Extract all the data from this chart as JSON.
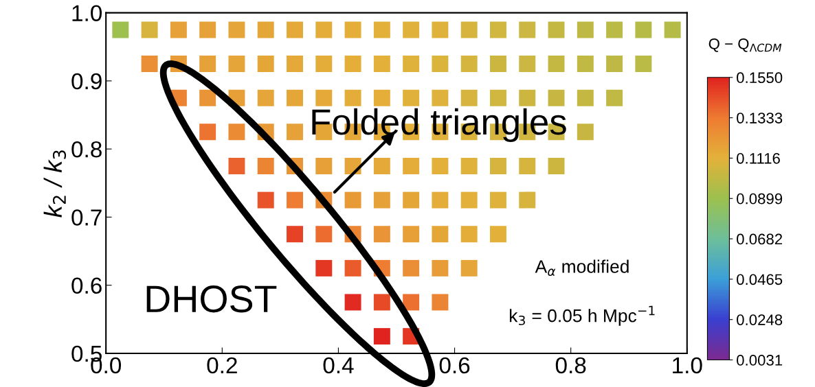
{
  "chart_data": {
    "type": "scatter",
    "marker": "square",
    "ylabel": "k$_{2}$ / k$_{3}$",
    "clabel": "Q − Q$_{ΛCDM}$",
    "annotations": [
      "Folded triangles",
      "DHOST",
      "A$_{α}$ modified",
      "k$_{3}$ = 0.05 h Mpc$^{−1}$"
    ],
    "x": [
      0.025,
      0.075,
      0.125,
      0.175,
      0.225,
      0.275,
      0.325,
      0.375,
      0.425,
      0.475,
      0.525,
      0.575,
      0.625,
      0.675,
      0.725,
      0.775,
      0.825,
      0.875,
      0.925,
      0.975,
      0.075,
      0.125,
      0.175,
      0.225,
      0.275,
      0.325,
      0.375,
      0.425,
      0.475,
      0.525,
      0.575,
      0.625,
      0.675,
      0.725,
      0.775,
      0.825,
      0.875,
      0.925,
      0.125,
      0.175,
      0.225,
      0.275,
      0.325,
      0.375,
      0.425,
      0.475,
      0.525,
      0.575,
      0.625,
      0.675,
      0.725,
      0.775,
      0.825,
      0.875,
      0.175,
      0.225,
      0.275,
      0.325,
      0.375,
      0.425,
      0.475,
      0.525,
      0.575,
      0.625,
      0.675,
      0.725,
      0.775,
      0.825,
      0.225,
      0.275,
      0.325,
      0.375,
      0.425,
      0.475,
      0.525,
      0.575,
      0.625,
      0.675,
      0.725,
      0.775,
      0.275,
      0.325,
      0.375,
      0.425,
      0.475,
      0.525,
      0.575,
      0.625,
      0.675,
      0.725,
      0.325,
      0.375,
      0.425,
      0.475,
      0.525,
      0.575,
      0.625,
      0.675,
      0.375,
      0.425,
      0.475,
      0.525,
      0.575,
      0.625,
      0.425,
      0.475,
      0.525,
      0.575,
      0.475,
      0.525
    ],
    "values": [
      0.975,
      0.975,
      0.975,
      0.975,
      0.975,
      0.975,
      0.975,
      0.975,
      0.975,
      0.975,
      0.975,
      0.975,
      0.975,
      0.975,
      0.975,
      0.975,
      0.975,
      0.975,
      0.975,
      0.975,
      0.925,
      0.925,
      0.925,
      0.925,
      0.925,
      0.925,
      0.925,
      0.925,
      0.925,
      0.925,
      0.925,
      0.925,
      0.925,
      0.925,
      0.925,
      0.925,
      0.925,
      0.925,
      0.875,
      0.875,
      0.875,
      0.875,
      0.875,
      0.875,
      0.875,
      0.875,
      0.875,
      0.875,
      0.875,
      0.875,
      0.875,
      0.875,
      0.875,
      0.875,
      0.825,
      0.825,
      0.825,
      0.825,
      0.825,
      0.825,
      0.825,
      0.825,
      0.825,
      0.825,
      0.825,
      0.825,
      0.825,
      0.825,
      0.775,
      0.775,
      0.775,
      0.775,
      0.775,
      0.775,
      0.775,
      0.775,
      0.775,
      0.775,
      0.775,
      0.775,
      0.725,
      0.725,
      0.725,
      0.725,
      0.725,
      0.725,
      0.725,
      0.725,
      0.725,
      0.725,
      0.675,
      0.675,
      0.675,
      0.675,
      0.675,
      0.675,
      0.675,
      0.675,
      0.625,
      0.625,
      0.625,
      0.625,
      0.625,
      0.625,
      0.575,
      0.575,
      0.575,
      0.575,
      0.525,
      0.525
    ],
    "cvalues": [
      0.09,
      0.108,
      0.118,
      0.118,
      0.117,
      0.116,
      0.115,
      0.114,
      0.113,
      0.112,
      0.111,
      0.11,
      0.108,
      0.106,
      0.104,
      0.102,
      0.1,
      0.099,
      0.098,
      0.097,
      0.125,
      0.12,
      0.118,
      0.117,
      0.116,
      0.115,
      0.114,
      0.113,
      0.112,
      0.11,
      0.109,
      0.107,
      0.105,
      0.104,
      0.102,
      0.101,
      0.1,
      0.099,
      0.13,
      0.123,
      0.119,
      0.117,
      0.116,
      0.115,
      0.114,
      0.113,
      0.111,
      0.11,
      0.108,
      0.106,
      0.105,
      0.103,
      0.102,
      0.101,
      0.135,
      0.126,
      0.121,
      0.118,
      0.116,
      0.115,
      0.114,
      0.112,
      0.111,
      0.109,
      0.107,
      0.106,
      0.104,
      0.103,
      0.139,
      0.129,
      0.123,
      0.119,
      0.117,
      0.115,
      0.114,
      0.112,
      0.11,
      0.108,
      0.107,
      0.105,
      0.143,
      0.133,
      0.126,
      0.121,
      0.118,
      0.116,
      0.114,
      0.112,
      0.11,
      0.108,
      0.147,
      0.137,
      0.129,
      0.123,
      0.119,
      0.116,
      0.114,
      0.112,
      0.15,
      0.141,
      0.132,
      0.125,
      0.12,
      0.117,
      0.153,
      0.145,
      0.136,
      0.129,
      0.155,
      0.15
    ],
    "xlim": [
      0,
      1
    ],
    "ylim": [
      0.5,
      1
    ],
    "xticks": [
      {
        "value": 0,
        "label": "0.0"
      },
      {
        "value": 0.2,
        "label": "0.2"
      },
      {
        "value": 0.4,
        "label": "0.4"
      },
      {
        "value": 0.6,
        "label": "0.6"
      },
      {
        "value": 0.8,
        "label": "0.8"
      },
      {
        "value": 1,
        "label": "1.0"
      }
    ],
    "yticks": [
      {
        "value": 0.5,
        "label": "0.5"
      },
      {
        "value": 0.6,
        "label": "0.6"
      },
      {
        "value": 0.7,
        "label": "0.7"
      },
      {
        "value": 0.8,
        "label": "0.8"
      },
      {
        "value": 0.9,
        "label": "0.9"
      },
      {
        "value": 1,
        "label": "1.0"
      }
    ],
    "clim": [
      0.0031,
      0.155
    ],
    "cticks": [
      {
        "value": 0.0031,
        "label": "0.0031"
      },
      {
        "value": 0.0248,
        "label": "0.0248"
      },
      {
        "value": 0.0465,
        "label": "0.0465"
      },
      {
        "value": 0.0682,
        "label": "0.0682"
      },
      {
        "value": 0.0899,
        "label": "0.0899"
      },
      {
        "value": 0.1116,
        "label": "0.1116"
      },
      {
        "value": 0.1333,
        "label": "0.1333"
      },
      {
        "value": 0.155,
        "label": "0.1550"
      }
    ]
  }
}
